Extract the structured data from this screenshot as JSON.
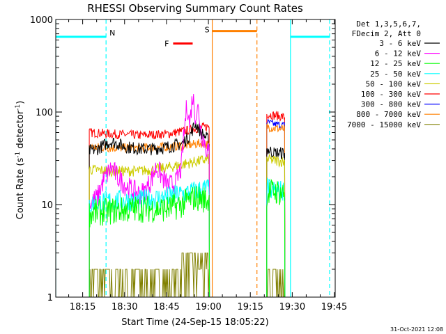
{
  "chart_data": {
    "type": "line",
    "title": "RHESSI Observing Summary Count Rates",
    "xlabel": "Start Time (24-Sep-15 18:05:22)",
    "ylabel": "Count Rate (s-1 detector-1)",
    "ylabel_parts": {
      "a": "Count Rate (s",
      "sup1": "-1",
      "b": " detector",
      "sup2": "-1",
      "c": ")"
    },
    "x_ticks": [
      "18:15",
      "18:30",
      "18:45",
      "19:00",
      "19:15",
      "19:30",
      "19:45"
    ],
    "y_ticks": [
      "1",
      "10",
      "100",
      "1000"
    ],
    "xlim_minutes": [
      0,
      100
    ],
    "ylim": [
      1,
      1000
    ],
    "y_scale": "log",
    "footer_date": "31-Oct-2021 12:08",
    "legend": {
      "placement": "top-right",
      "header": [
        "Det 1,3,5,6,7,",
        "FDecim 2, Att 0"
      ],
      "entries": [
        {
          "label": "3 - 6 keV",
          "color": "#000000"
        },
        {
          "label": "6 - 12 keV",
          "color": "#ff00ff"
        },
        {
          "label": "12 - 25 keV",
          "color": "#00ff00"
        },
        {
          "label": "25 - 50 keV",
          "color": "#00ffff"
        },
        {
          "label": "50 - 100 keV",
          "color": "#cccc00"
        },
        {
          "label": "100 - 300 keV",
          "color": "#ff0000"
        },
        {
          "label": "300 - 800 keV",
          "color": "#0000ff"
        },
        {
          "label": "800 - 7000 keV",
          "color": "#ff8000"
        },
        {
          "label": "7000 - 15000 keV",
          "color": "#808000"
        }
      ]
    },
    "flags": [
      {
        "label": "N",
        "color": "#00ffff",
        "start": 0,
        "end": 18,
        "level": 650
      },
      {
        "label": "F",
        "color": "#ff0000",
        "start": 42,
        "end": 49,
        "level": 550
      },
      {
        "label": "S",
        "color": "#ff8000",
        "start": 56,
        "end": 72,
        "level": 750
      },
      {
        "label": "",
        "color": "#00ffff",
        "start": 84,
        "end": 98,
        "level": 650
      }
    ],
    "vlines": [
      {
        "x": 0,
        "color": "#00ffff",
        "style": "solid"
      },
      {
        "x": 18,
        "color": "#00ffff",
        "style": "dashed"
      },
      {
        "x": 56,
        "color": "#ff8000",
        "style": "solid"
      },
      {
        "x": 72,
        "color": "#ff8000",
        "style": "dashed"
      },
      {
        "x": 84,
        "color": "#00ffff",
        "style": "solid"
      },
      {
        "x": 98,
        "color": "#00ffff",
        "style": "dashed"
      }
    ],
    "series": [
      {
        "name": "100 - 300 keV",
        "color": "#ff0000",
        "noise": 0.05,
        "segments": [
          {
            "x": [
              12,
              20,
              30,
              40,
              48,
              52,
              55
            ],
            "y": [
              60,
              58,
              56,
              58,
              64,
              68,
              70
            ]
          },
          {
            "x": [
              75.5,
              78,
              82
            ],
            "y": [
              95,
              92,
              88
            ]
          }
        ]
      },
      {
        "name": "300 - 800 keV",
        "color": "#0000ff",
        "noise": 0.04,
        "segments": [
          {
            "x": [
              75.5,
              78,
              82
            ],
            "y": [
              78,
              74,
              72
            ]
          }
        ]
      },
      {
        "name": "800 - 7000 keV",
        "color": "#ff8000",
        "noise": 0.05,
        "segments": [
          {
            "x": [
              12,
              20,
              30,
              40,
              48,
              52,
              55
            ],
            "y": [
              42,
              41,
              41,
              42,
              44,
              46,
              44
            ]
          },
          {
            "x": [
              75.5,
              78,
              82
            ],
            "y": [
              70,
              67,
              65
            ]
          }
        ]
      },
      {
        "name": "3 - 6 keV",
        "color": "#000000",
        "noise": 0.07,
        "segments": [
          {
            "x": [
              12,
              15,
              18,
              20,
              25,
              30,
              35,
              40,
              45,
              48,
              50,
              52,
              55
            ],
            "y": [
              38,
              40,
              45,
              48,
              42,
              40,
              40,
              42,
              45,
              55,
              75,
              60,
              48
            ]
          },
          {
            "x": [
              75.5,
              78,
              82
            ],
            "y": [
              40,
              36,
              36
            ]
          }
        ]
      },
      {
        "name": "50 - 100 keV",
        "color": "#cccc00",
        "noise": 0.06,
        "segments": [
          {
            "x": [
              12,
              20,
              30,
              40,
              45,
              50,
              55
            ],
            "y": [
              24,
              23,
              23,
              25,
              27,
              29,
              31
            ]
          },
          {
            "x": [
              75.5,
              78,
              82
            ],
            "y": [
              31,
              30,
              29
            ]
          }
        ]
      },
      {
        "name": "6 - 12 keV",
        "color": "#ff00ff",
        "noise": 0.12,
        "segments": [
          {
            "x": [
              12,
              15,
              17,
              20,
              22,
              25,
              28,
              30,
              32,
              34,
              36,
              38,
              40,
              43,
              45,
              46,
              47,
              48,
              49,
              50,
              51,
              52,
              54,
              55
            ],
            "y": [
              10,
              12,
              18,
              25,
              20,
              16,
              14,
              13,
              14,
              18,
              25,
              20,
              16,
              17,
              25,
              60,
              120,
              70,
              150,
              90,
              110,
              60,
              40,
              35
            ]
          }
        ]
      },
      {
        "name": "25 - 50 keV",
        "color": "#00ffff",
        "noise": 0.12,
        "segments": [
          {
            "x": [
              12,
              20,
              30,
              40,
              45,
              50,
              55
            ],
            "y": [
              10,
              11,
              11,
              12,
              13,
              14,
              15
            ]
          },
          {
            "x": [
              75.5,
              78,
              82
            ],
            "y": [
              15,
              14,
              14
            ]
          }
        ]
      },
      {
        "name": "12 - 25 keV",
        "color": "#00ff00",
        "noise": 0.15,
        "segments": [
          {
            "x": [
              12,
              20,
              30,
              40,
              45,
              50,
              55
            ],
            "y": [
              8,
              8.5,
              9,
              9,
              10,
              12,
              11
            ]
          },
          {
            "x": [
              75.5,
              78,
              82
            ],
            "y": [
              13,
              14,
              13
            ]
          }
        ]
      }
    ],
    "bins_series": {
      "name": "7000 - 15000 keV",
      "color": "#808000",
      "segments": [
        {
          "x": [
            12,
            55
          ],
          "levels": [
            1,
            2
          ],
          "high_from": 44,
          "high_levels": [
            1,
            2,
            3
          ]
        },
        {
          "x": [
            75.5,
            82
          ],
          "levels": [
            1,
            2
          ]
        }
      ]
    }
  }
}
